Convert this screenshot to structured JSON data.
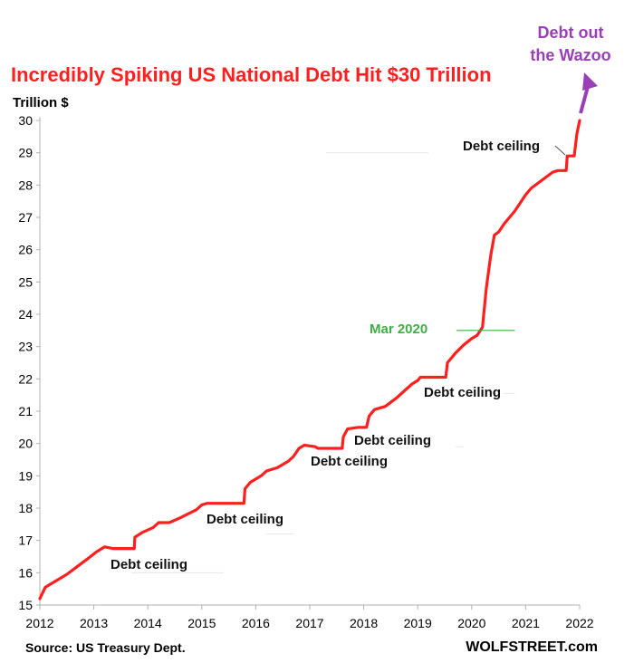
{
  "title": "Incredibly Spiking US National Debt Hit $30 Trillion",
  "y_unit_label": "Trillion $",
  "source": "Source: US Treasury Dept.",
  "brand": "WOLFSTREET.com",
  "colors": {
    "line": "#ff1f1f",
    "title": "#ff1f1f",
    "mar2020": "#3cb043",
    "wazoo": "#9a3fb5",
    "axis": "#b0b0b0"
  },
  "chart_data": {
    "type": "line",
    "title": "Incredibly Spiking US National Debt Hit $30 Trillion",
    "xlabel": "",
    "ylabel": "Trillion $",
    "xlim": [
      2012,
      2022
    ],
    "ylim": [
      15,
      30
    ],
    "x_ticks": [
      "2012",
      "2013",
      "2014",
      "2015",
      "2016",
      "2017",
      "2018",
      "2019",
      "2020",
      "2021",
      "2022"
    ],
    "y_ticks": [
      "15",
      "16",
      "17",
      "18",
      "19",
      "20",
      "21",
      "22",
      "23",
      "24",
      "25",
      "26",
      "27",
      "28",
      "29",
      "30"
    ],
    "grid": false,
    "series": [
      {
        "values": [
          [
            2012.0,
            15.2
          ],
          [
            2012.1,
            15.55
          ],
          [
            2012.3,
            15.75
          ],
          [
            2012.5,
            15.95
          ],
          [
            2012.7,
            16.2
          ],
          [
            2012.9,
            16.45
          ],
          [
            2013.05,
            16.65
          ],
          [
            2013.2,
            16.8
          ],
          [
            2013.35,
            16.75
          ],
          [
            2013.75,
            16.75
          ],
          [
            2013.76,
            17.1
          ],
          [
            2013.9,
            17.25
          ],
          [
            2014.1,
            17.4
          ],
          [
            2014.2,
            17.55
          ],
          [
            2014.4,
            17.55
          ],
          [
            2014.6,
            17.7
          ],
          [
            2014.9,
            17.95
          ],
          [
            2015.0,
            18.1
          ],
          [
            2015.1,
            18.15
          ],
          [
            2015.78,
            18.15
          ],
          [
            2015.8,
            18.6
          ],
          [
            2015.9,
            18.8
          ],
          [
            2016.1,
            19.0
          ],
          [
            2016.2,
            19.15
          ],
          [
            2016.4,
            19.25
          ],
          [
            2016.6,
            19.45
          ],
          [
            2016.7,
            19.6
          ],
          [
            2016.8,
            19.85
          ],
          [
            2016.9,
            19.95
          ],
          [
            2017.1,
            19.9
          ],
          [
            2017.15,
            19.85
          ],
          [
            2017.6,
            19.85
          ],
          [
            2017.62,
            20.2
          ],
          [
            2017.7,
            20.45
          ],
          [
            2017.9,
            20.5
          ],
          [
            2018.0,
            20.5
          ],
          [
            2018.05,
            20.5
          ],
          [
            2018.1,
            20.85
          ],
          [
            2018.2,
            21.05
          ],
          [
            2018.4,
            21.15
          ],
          [
            2018.6,
            21.4
          ],
          [
            2018.8,
            21.7
          ],
          [
            2018.9,
            21.85
          ],
          [
            2019.0,
            21.95
          ],
          [
            2019.05,
            22.05
          ],
          [
            2019.52,
            22.05
          ],
          [
            2019.55,
            22.5
          ],
          [
            2019.7,
            22.8
          ],
          [
            2019.85,
            23.05
          ],
          [
            2020.0,
            23.25
          ],
          [
            2020.1,
            23.35
          ],
          [
            2020.2,
            23.6
          ],
          [
            2020.27,
            24.8
          ],
          [
            2020.35,
            25.8
          ],
          [
            2020.42,
            26.45
          ],
          [
            2020.5,
            26.55
          ],
          [
            2020.6,
            26.8
          ],
          [
            2020.8,
            27.2
          ],
          [
            2021.0,
            27.7
          ],
          [
            2021.1,
            27.9
          ],
          [
            2021.3,
            28.15
          ],
          [
            2021.5,
            28.4
          ],
          [
            2021.6,
            28.45
          ],
          [
            2021.75,
            28.45
          ],
          [
            2021.77,
            28.9
          ],
          [
            2021.9,
            28.9
          ],
          [
            2021.95,
            29.6
          ],
          [
            2022.0,
            30.0
          ]
        ]
      }
    ],
    "annotations": [
      {
        "text": "Debt ceiling",
        "near_x": 2013.4,
        "near_y": 16.3
      },
      {
        "text": "Debt ceiling",
        "near_x": 2015.4,
        "near_y": 17.6
      },
      {
        "text": "Debt ceiling",
        "near_x": 2017.0,
        "near_y": 19.45
      },
      {
        "text": "Debt ceiling",
        "near_x": 2018.3,
        "near_y": 20.1
      },
      {
        "text": "Debt ceiling",
        "near_x": 2019.5,
        "near_y": 21.6
      },
      {
        "text": "Debt ceiling",
        "near_x": 2020.75,
        "near_y": 29.2
      },
      {
        "text": "Mar 2020",
        "near_x": 2019.7,
        "near_y": 23.5
      },
      {
        "text": "Debt out the Wazoo",
        "near_x": 2022.0,
        "near_y": 31.5
      }
    ]
  }
}
